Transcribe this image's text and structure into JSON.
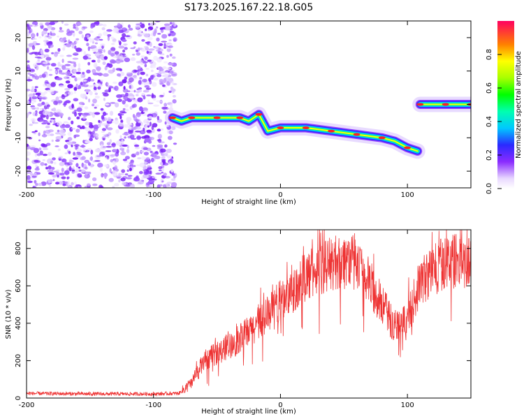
{
  "title": "S173.2025.167.22.18.G05",
  "chart_data": [
    {
      "type": "heatmap",
      "name": "spectrogram",
      "xlabel": "Height of straight line (km)",
      "ylabel": "Frequency (Hz)",
      "xlim": [
        -200,
        150
      ],
      "ylim": [
        -25,
        25
      ],
      "x_ticks": [
        -200,
        -100,
        0,
        100
      ],
      "y_ticks": [
        -20,
        -10,
        0,
        10,
        20
      ],
      "noise_region_x": [
        -200,
        -83
      ],
      "ridge": [
        {
          "x": -85,
          "y": -4
        },
        {
          "x": -78,
          "y": -5
        },
        {
          "x": -70,
          "y": -4
        },
        {
          "x": -60,
          "y": -4
        },
        {
          "x": -50,
          "y": -4
        },
        {
          "x": -40,
          "y": -4
        },
        {
          "x": -32,
          "y": -4
        },
        {
          "x": -25,
          "y": -5
        },
        {
          "x": -17,
          "y": -3
        },
        {
          "x": -10,
          "y": -8
        },
        {
          "x": 0,
          "y": -7
        },
        {
          "x": 10,
          "y": -7
        },
        {
          "x": 20,
          "y": -7
        },
        {
          "x": 30,
          "y": -7.5
        },
        {
          "x": 40,
          "y": -8
        },
        {
          "x": 50,
          "y": -8.5
        },
        {
          "x": 60,
          "y": -9
        },
        {
          "x": 70,
          "y": -9.5
        },
        {
          "x": 80,
          "y": -10
        },
        {
          "x": 90,
          "y": -11
        },
        {
          "x": 100,
          "y": -13
        },
        {
          "x": 108,
          "y": -14
        }
      ],
      "ridge2": [
        {
          "x": 110,
          "y": 0
        },
        {
          "x": 120,
          "y": 0
        },
        {
          "x": 130,
          "y": 0
        },
        {
          "x": 140,
          "y": 0
        },
        {
          "x": 150,
          "y": 0
        }
      ],
      "colorbar": {
        "label": "Normalized spectral amplitude",
        "range": [
          0,
          1
        ],
        "ticks": [
          "0.0",
          "0.2",
          "0.4",
          "0.6",
          "0.8"
        ],
        "tick_values": [
          0,
          0.2,
          0.4,
          0.6,
          0.8
        ]
      }
    },
    {
      "type": "line",
      "name": "snr",
      "color": "#ee3333",
      "xlabel": "Height of straight line (km)",
      "ylabel": "SNR (10 * v/v)",
      "xlim": [
        -200,
        150
      ],
      "ylim": [
        0,
        900
      ],
      "x_ticks": [
        -200,
        -100,
        0,
        100
      ],
      "y_ticks": [
        0,
        200,
        400,
        600,
        800
      ],
      "envelope": [
        {
          "x": -200,
          "y": 25
        },
        {
          "x": -150,
          "y": 22
        },
        {
          "x": -100,
          "y": 22
        },
        {
          "x": -80,
          "y": 25
        },
        {
          "x": -70,
          "y": 80
        },
        {
          "x": -60,
          "y": 200
        },
        {
          "x": -40,
          "y": 280
        },
        {
          "x": -20,
          "y": 380
        },
        {
          "x": 0,
          "y": 520
        },
        {
          "x": 20,
          "y": 650
        },
        {
          "x": 40,
          "y": 720
        },
        {
          "x": 55,
          "y": 740
        },
        {
          "x": 70,
          "y": 620
        },
        {
          "x": 80,
          "y": 500
        },
        {
          "x": 90,
          "y": 380
        },
        {
          "x": 100,
          "y": 420
        },
        {
          "x": 110,
          "y": 620
        },
        {
          "x": 130,
          "y": 740
        },
        {
          "x": 150,
          "y": 720
        }
      ]
    }
  ]
}
